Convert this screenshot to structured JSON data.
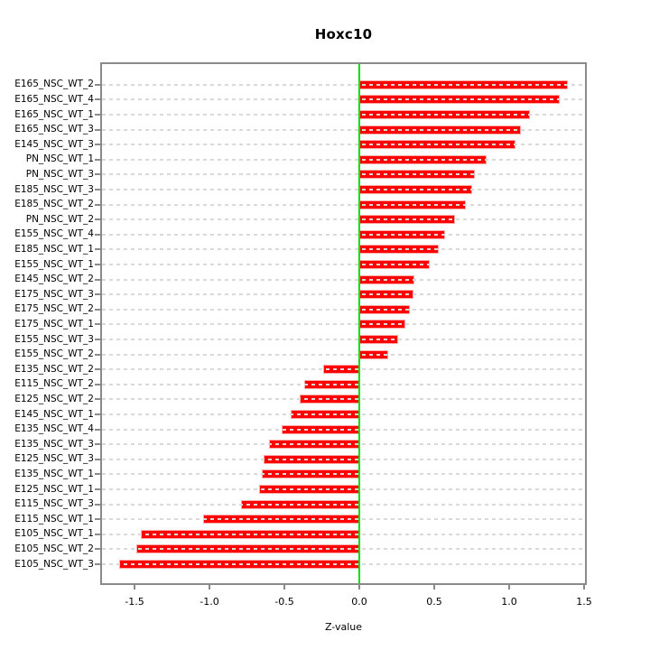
{
  "chart_data": {
    "type": "bar",
    "orientation": "horizontal",
    "title": "Hoxc10",
    "xlabel": "Z-value",
    "ylabel": "",
    "grid": "horizontal-dashed",
    "legend": "none",
    "zero_line_x": 0,
    "xlim": [
      -1.72,
      1.51
    ],
    "x_ticks": [
      {
        "value": -1.5,
        "label": "-1.5"
      },
      {
        "value": -1.0,
        "label": "-1.0"
      },
      {
        "value": -0.5,
        "label": "-0.5"
      },
      {
        "value": 0.0,
        "label": "0.0"
      },
      {
        "value": 0.5,
        "label": "0.5"
      },
      {
        "value": 1.0,
        "label": "1.0"
      },
      {
        "value": 1.5,
        "label": "1.5"
      }
    ],
    "categories": [
      "E165_NSC_WT_2",
      "E165_NSC_WT_4",
      "E165_NSC_WT_1",
      "E165_NSC_WT_3",
      "E145_NSC_WT_3",
      "PN_NSC_WT_1",
      "PN_NSC_WT_3",
      "E185_NSC_WT_3",
      "E185_NSC_WT_2",
      "PN_NSC_WT_2",
      "E155_NSC_WT_4",
      "E185_NSC_WT_1",
      "E155_NSC_WT_1",
      "E145_NSC_WT_2",
      "E175_NSC_WT_3",
      "E175_NSC_WT_2",
      "E175_NSC_WT_1",
      "E155_NSC_WT_3",
      "E155_NSC_WT_2",
      "E135_NSC_WT_2",
      "E115_NSC_WT_2",
      "E125_NSC_WT_2",
      "E145_NSC_WT_1",
      "E135_NSC_WT_4",
      "E135_NSC_WT_3",
      "E125_NSC_WT_3",
      "E135_NSC_WT_1",
      "E125_NSC_WT_1",
      "E115_NSC_WT_3",
      "E115_NSC_WT_1",
      "E105_NSC_WT_1",
      "E105_NSC_WT_2",
      "E105_NSC_WT_3"
    ],
    "values": [
      1.39,
      1.34,
      1.14,
      1.08,
      1.04,
      0.85,
      0.77,
      0.75,
      0.71,
      0.64,
      0.57,
      0.53,
      0.47,
      0.37,
      0.36,
      0.34,
      0.31,
      0.26,
      0.19,
      -0.24,
      -0.37,
      -0.4,
      -0.46,
      -0.52,
      -0.6,
      -0.64,
      -0.65,
      -0.67,
      -0.79,
      -1.04,
      -1.46,
      -1.49,
      -1.6
    ],
    "colors": {
      "bar": "#ff0000",
      "bar_edge": "#ffa6a6",
      "zero_line": "#00e000",
      "grid": "#d9d9d9",
      "axis": "#8a8a8a",
      "text": "#000000",
      "background": "#ffffff"
    }
  }
}
